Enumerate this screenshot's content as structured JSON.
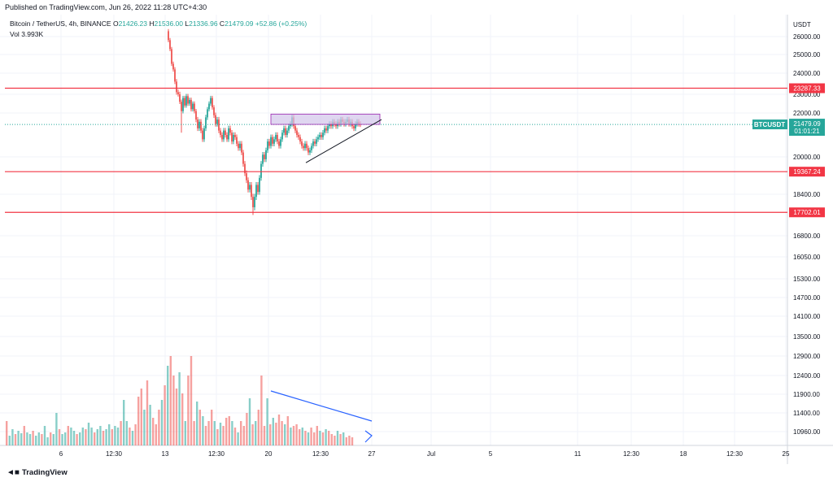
{
  "header": {
    "published": "Published on TradingView.com, Jun 26, 2022 11:28 UTC+4:30"
  },
  "legend": {
    "symbol": "Bitcoin / TetherUS, 4h, BINANCE",
    "open_label": "O",
    "open": "21426.23",
    "high_label": "H",
    "high": "21536.00",
    "low_label": "L",
    "low": "21336.96",
    "close_label": "C",
    "close": "21479.09",
    "change": "+52.86 (+0.25%)",
    "vol_label": "Vol",
    "vol": "3.993K"
  },
  "footer": {
    "logo_text": "TradingView"
  },
  "colors": {
    "up": "#26a69a",
    "down": "#ef5350",
    "level_line": "#f23645",
    "range_box": "#d1c4e9",
    "volume_arrow": "#2962ff"
  },
  "chart_data": {
    "type": "candlestick",
    "symbol": "BTCUSDT",
    "currency": "USDT",
    "y_axis_labels": [
      "26000.00",
      "25000.00",
      "24000.00",
      "23000.00",
      "22000.00",
      "20000.00",
      "18400.00",
      "16800.00",
      "16050.00",
      "15300.00",
      "14700.00",
      "14100.00",
      "13500.00",
      "12900.00",
      "12400.00",
      "11900.00",
      "11400.00",
      "10960.00"
    ],
    "x_axis_labels": [
      "6",
      "12:30",
      "13",
      "12:30",
      "20",
      "12:30",
      "27",
      "Jul",
      "5",
      "11",
      "12:30",
      "18",
      "12:30",
      "25"
    ],
    "horizontal_levels": [
      {
        "value": 23287.33,
        "label": "23287.33"
      },
      {
        "value": 19367.24,
        "label": "19367.24"
      },
      {
        "value": 17702.01,
        "label": "17702.01"
      }
    ],
    "last_price": {
      "label": "BTCUSDT",
      "value": "21479.09",
      "countdown": "01:01:21"
    },
    "price_range": [
      10960,
      26500
    ],
    "grid": true
  }
}
